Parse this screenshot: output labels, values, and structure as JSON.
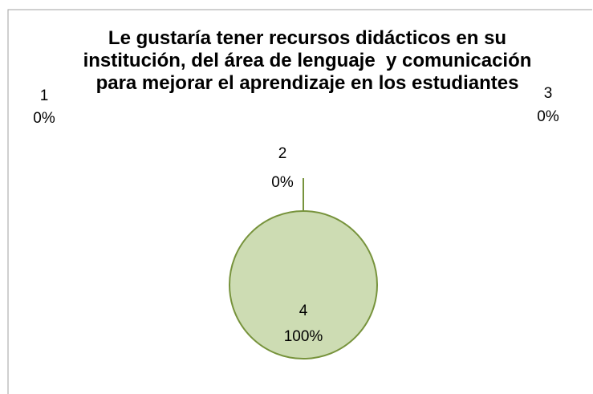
{
  "chart_data": {
    "type": "pie",
    "title": "Le gustaría tener recursos didácticos en su institución, del área de lenguaje  y comunicación para mejorar el aprendizaje en los estudiantes",
    "categories": [
      "1",
      "2",
      "3",
      "4"
    ],
    "values": [
      0,
      0,
      0,
      100
    ],
    "value_labels": [
      "0%",
      "0%",
      "0%",
      "100%"
    ],
    "color": "#cddcb3"
  }
}
